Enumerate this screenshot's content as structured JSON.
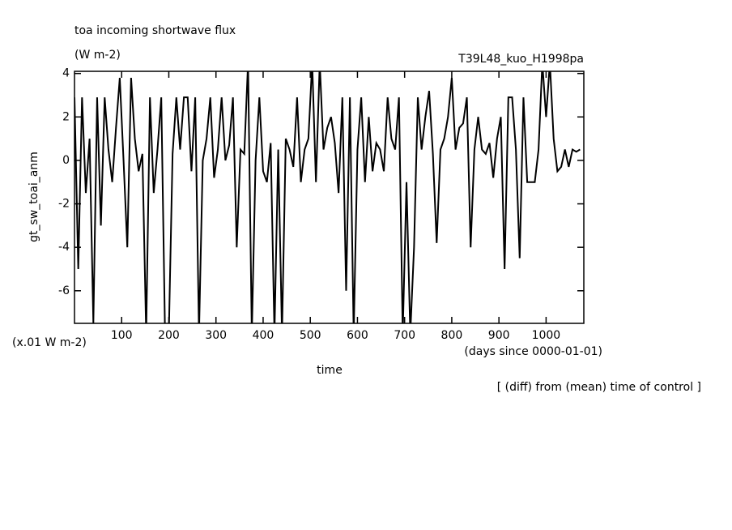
{
  "chart_data": {
    "type": "line",
    "title": "toa incoming shortwave flux",
    "subtitle": "(W m-2)",
    "run_label": "T39L48_kuo_H1998pa",
    "y_label": "gt_sw_toai_anm",
    "y_unit": "(x.01 W m-2)",
    "x_label": "time",
    "x_unit": "(days since 0000-01-01)",
    "note": "[ (diff) from (mean) time of control ]",
    "xlim": [
      0,
      1080
    ],
    "xticks": [
      100,
      200,
      300,
      400,
      500,
      600,
      700,
      800,
      900,
      1000
    ],
    "ylim": [
      -7.5,
      4.1
    ],
    "yticks": [
      -6,
      -4,
      -2,
      0,
      2,
      4
    ],
    "x": [
      0,
      8,
      16,
      24,
      32,
      40,
      48,
      56,
      64,
      72,
      80,
      88,
      96,
      104,
      112,
      120,
      128,
      136,
      144,
      152,
      160,
      168,
      176,
      184,
      192,
      200,
      208,
      216,
      224,
      232,
      240,
      248,
      256,
      264,
      272,
      280,
      288,
      296,
      304,
      312,
      320,
      328,
      336,
      344,
      352,
      360,
      368,
      376,
      384,
      392,
      400,
      408,
      416,
      424,
      432,
      440,
      448,
      456,
      464,
      472,
      480,
      488,
      496,
      504,
      512,
      520,
      528,
      536,
      544,
      552,
      560,
      568,
      576,
      584,
      592,
      600,
      608,
      616,
      624,
      632,
      640,
      648,
      656,
      664,
      672,
      680,
      688,
      696,
      704,
      712,
      720,
      728,
      736,
      744,
      752,
      760,
      768,
      776,
      784,
      792,
      800,
      808,
      816,
      824,
      832,
      840,
      848,
      856,
      864,
      872,
      880,
      888,
      896,
      904,
      912,
      920,
      928,
      936,
      944,
      952,
      960,
      968,
      976,
      984,
      992,
      1000,
      1008,
      1016,
      1024,
      1032,
      1040,
      1048,
      1056,
      1064,
      1072
    ],
    "series": [
      {
        "color": "#000000",
        "values": [
          2.9,
          -5,
          2.9,
          -1.5,
          1,
          -7.5,
          2.9,
          -3,
          2.9,
          0.5,
          -1,
          1.5,
          3.8,
          0,
          -4,
          3.8,
          1,
          -0.5,
          0.3,
          -8,
          2.9,
          -1.5,
          0.5,
          2.9,
          -8,
          -8,
          0.3,
          2.9,
          0.5,
          2.9,
          2.9,
          -0.5,
          2.9,
          -8,
          0,
          1,
          2.9,
          -0.8,
          0.5,
          2.9,
          0,
          0.7,
          2.9,
          -4,
          0.5,
          0.3,
          4.5,
          -8,
          0,
          2.9,
          -0.5,
          -1,
          0.8,
          -8,
          0.5,
          -8,
          1,
          0.5,
          -0.3,
          2.9,
          -1,
          0.5,
          1,
          4.5,
          -1,
          4.5,
          0.5,
          1.5,
          2,
          0.8,
          -1.5,
          2.9,
          -6,
          2.9,
          -8,
          0.5,
          2.9,
          -1,
          2,
          -0.5,
          0.8,
          0.5,
          -0.5,
          2.9,
          1,
          0.5,
          2.9,
          -8,
          -1,
          -8,
          -4,
          2.9,
          0.5,
          2,
          3.2,
          0.3,
          -3.8,
          0.5,
          1,
          2,
          3.8,
          0.5,
          1.5,
          1.7,
          2.9,
          -4,
          0.5,
          2,
          0.5,
          0.3,
          0.8,
          -0.8,
          1,
          2,
          -5,
          2.9,
          2.9,
          0.5,
          -4.5,
          2.9,
          -1,
          -1,
          -1,
          0.5,
          4.5,
          2,
          4.5,
          1,
          -0.5,
          -0.3,
          0.5,
          -0.3,
          0.5,
          0.4,
          0.5
        ]
      }
    ]
  }
}
